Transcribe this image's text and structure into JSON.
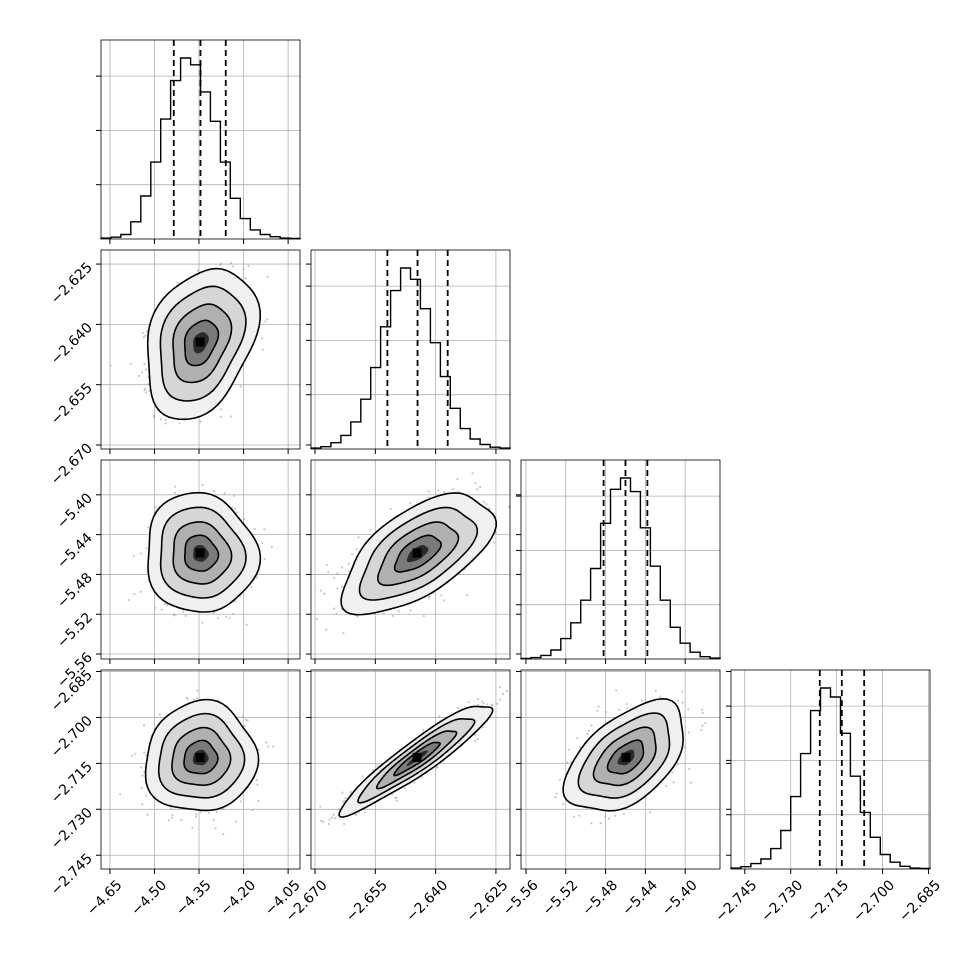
{
  "chart_data": {
    "type": "corner",
    "grid": true,
    "parameters": [
      {
        "range": [
          -4.68,
          -4.01
        ],
        "ticks": [
          "-4.65",
          "-4.50",
          "-4.35",
          "-4.20",
          "-4.05"
        ],
        "tick_values": [
          -4.65,
          -4.5,
          -4.35,
          -4.2,
          -4.05
        ],
        "quantiles": [
          -4.435,
          -4.345,
          -4.26
        ],
        "hist_counts": [
          2,
          4,
          10,
          38,
          95,
          170,
          265,
          350,
          400,
          385,
          325,
          260,
          170,
          90,
          45,
          20,
          10,
          5,
          2,
          1
        ]
      },
      {
        "range": [
          -2.671,
          -2.6215
        ],
        "ticks": [
          "-2.625",
          "-2.640",
          "-2.655",
          "-2.670"
        ],
        "tick_values": [
          -2.625,
          -2.64,
          -2.655,
          -2.67
        ],
        "quantiles": [
          -2.652,
          -2.6445,
          -2.637
        ],
        "hist_counts": [
          2,
          5,
          14,
          30,
          60,
          110,
          180,
          270,
          350,
          400,
          375,
          310,
          235,
          160,
          90,
          45,
          22,
          10,
          4,
          2
        ]
      },
      {
        "range": [
          -5.565,
          -5.365
        ],
        "ticks": [
          "-5.56",
          "-5.52",
          "-5.48",
          "-5.44",
          "-5.40"
        ],
        "tick_values": [
          -5.56,
          -5.52,
          -5.48,
          -5.44,
          -5.4
        ],
        "quantiles": [
          -5.482,
          -5.46,
          -5.438
        ],
        "hist_counts": [
          1,
          3,
          8,
          20,
          45,
          80,
          130,
          200,
          300,
          375,
          400,
          370,
          290,
          205,
          130,
          70,
          35,
          15,
          5,
          2
        ]
      },
      {
        "range": [
          -2.7495,
          -2.6845
        ],
        "ticks": [
          "-2.745",
          "-2.730",
          "-2.715",
          "-2.700",
          "-2.685"
        ],
        "tick_values": [
          -2.745,
          -2.73,
          -2.715,
          -2.7,
          -2.685
        ],
        "quantiles": [
          -2.7205,
          -2.7133,
          -2.706
        ],
        "hist_counts": [
          2,
          5,
          12,
          22,
          45,
          85,
          160,
          255,
          350,
          400,
          380,
          300,
          205,
          125,
          70,
          32,
          15,
          6,
          2,
          1
        ]
      }
    ],
    "pairs": [
      {
        "row": 1,
        "col": 0,
        "mean": [
          -4.345,
          -2.6445
        ],
        "sd": [
          0.075,
          0.0075
        ],
        "rho": 0.3
      },
      {
        "row": 2,
        "col": 0,
        "mean": [
          -4.345,
          -5.459
        ],
        "sd": [
          0.075,
          0.024
        ],
        "rho": -0.05
      },
      {
        "row": 2,
        "col": 1,
        "mean": [
          -2.6445,
          -5.459
        ],
        "sd": [
          0.0075,
          0.024
        ],
        "rho": 0.6
      },
      {
        "row": 3,
        "col": 0,
        "mean": [
          -4.345,
          -2.7132
        ],
        "sd": [
          0.075,
          0.0072
        ],
        "rho": 0.05
      },
      {
        "row": 3,
        "col": 1,
        "mean": [
          -2.6445,
          -2.7132
        ],
        "sd": [
          0.0075,
          0.0072
        ],
        "rho": 0.93
      },
      {
        "row": 3,
        "col": 2,
        "mean": [
          -5.459,
          -2.7132
        ],
        "sd": [
          0.024,
          0.0072
        ],
        "rho": 0.5
      }
    ]
  }
}
